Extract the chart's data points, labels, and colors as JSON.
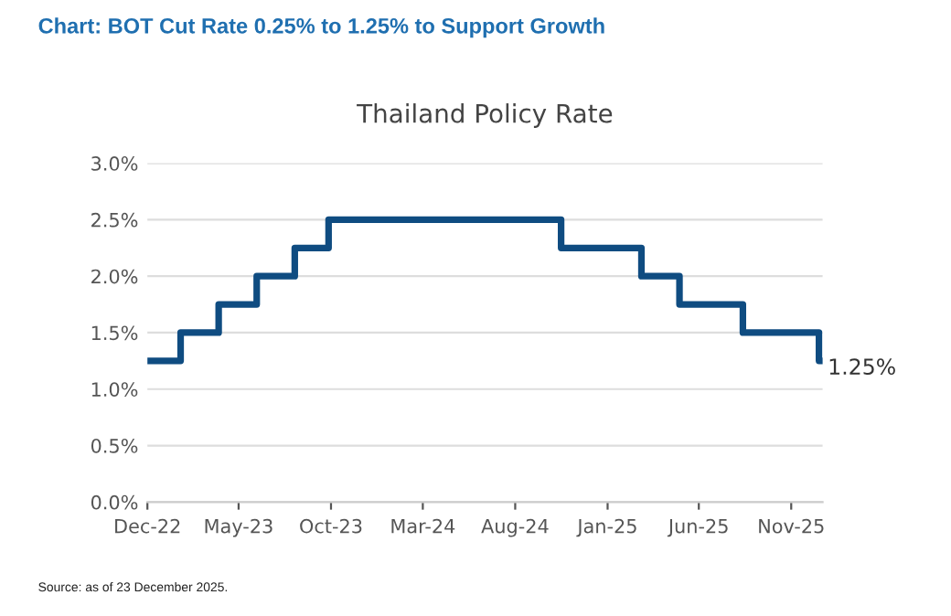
{
  "chart_data": {
    "type": "step",
    "title": "Chart: BOT Cut Rate 0.25% to 1.25% to Support Growth",
    "subtitle": "Thailand Policy Rate",
    "x": [
      "2022-12-01",
      "2023-01-25",
      "2023-03-29",
      "2023-05-31",
      "2023-08-02",
      "2023-09-27",
      "2024-10-16",
      "2025-02-26",
      "2025-04-30",
      "2025-08-13",
      "2025-12-17",
      "2025-12-23"
    ],
    "series": [
      {
        "color": "#0f4c81",
        "values": [
          1.25,
          1.5,
          1.75,
          2.0,
          2.25,
          2.5,
          2.25,
          2.0,
          1.75,
          1.5,
          1.25,
          1.25
        ]
      }
    ],
    "xlim": [
      "2022-12-01",
      "2025-12-23"
    ],
    "xticks": [
      {
        "value": "2022-12-01",
        "label": "Dec-22"
      },
      {
        "value": "2023-05-01",
        "label": "May-23"
      },
      {
        "value": "2023-10-01",
        "label": "Oct-23"
      },
      {
        "value": "2024-03-01",
        "label": "Mar-24"
      },
      {
        "value": "2024-08-01",
        "label": "Aug-24"
      },
      {
        "value": "2025-01-01",
        "label": "Jan-25"
      },
      {
        "value": "2025-06-01",
        "label": "Jun-25"
      },
      {
        "value": "2025-11-01",
        "label": "Nov-25"
      }
    ],
    "ylim": [
      0,
      3.0
    ],
    "yticks": [
      {
        "value": 0,
        "label": "0.0%"
      },
      {
        "value": 0.5,
        "label": "0.5%"
      },
      {
        "value": 1.0,
        "label": "1.0%"
      },
      {
        "value": 1.5,
        "label": "1.5%"
      },
      {
        "value": 2.0,
        "label": "2.0%"
      },
      {
        "value": 2.5,
        "label": "2.5%"
      },
      {
        "value": 3.0,
        "label": "3.0%"
      }
    ],
    "grid": "y",
    "legend": false,
    "annotations": [
      {
        "text": "1.25%",
        "x": "2025-12-23",
        "y": 1.25
      },
      "Source: as of 23 December 2025."
    ]
  }
}
